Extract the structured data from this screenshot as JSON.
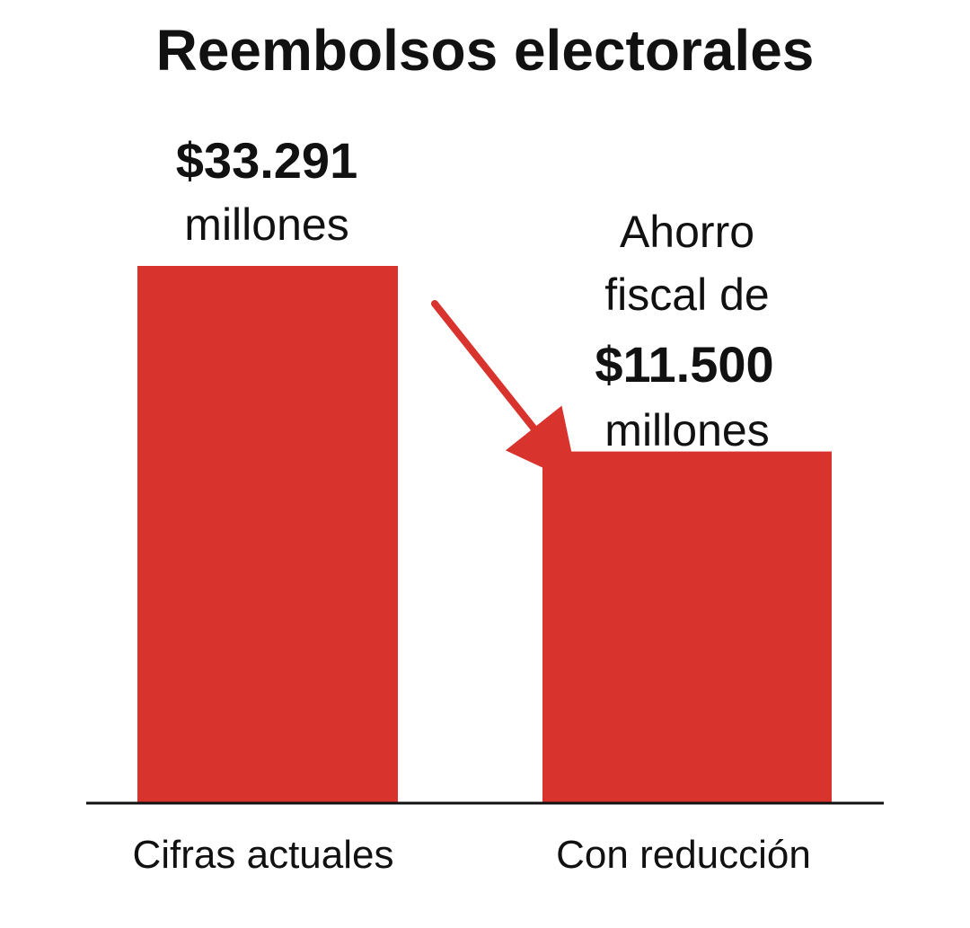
{
  "chart_data": {
    "type": "bar",
    "title": "Reembolsos electorales",
    "categories": [
      "Cifras actuales",
      "Con reducción"
    ],
    "values": [
      33291,
      21791
    ],
    "unit": "millones",
    "color": "#d9332e",
    "value_label": {
      "amount": "$33.291",
      "unit": "millones"
    },
    "annotation": {
      "line1": "Ahorro",
      "line2": "fiscal de",
      "amount": "$11.500",
      "unit": "millones",
      "saving_value": 11500,
      "arrow": "from first bar toward second bar"
    },
    "ylim": [
      0,
      33291
    ]
  }
}
